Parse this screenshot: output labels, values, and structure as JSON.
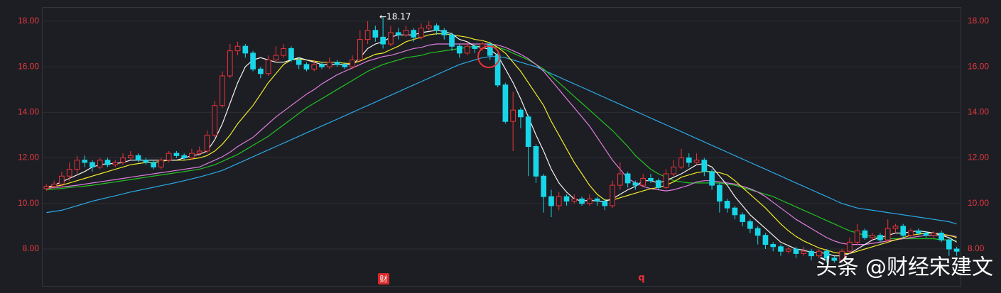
{
  "chart_data": {
    "type": "candlestick",
    "ylim": [
      6.38,
      18.62
    ],
    "yticks": [
      {
        "value": 8,
        "label": "8.00"
      },
      {
        "value": 10,
        "label": "10.00"
      },
      {
        "value": 12,
        "label": "12.00"
      },
      {
        "value": 14,
        "label": "14.00"
      },
      {
        "value": 16,
        "label": "16.00"
      },
      {
        "value": 18,
        "label": "18.00"
      }
    ],
    "grid": true,
    "up_color": "#e8333b",
    "down_color": "#18d6e8",
    "open": [
      10.65,
      10.75,
      10.85,
      11.2,
      11.5,
      11.9,
      11.8,
      11.6,
      11.9,
      11.7,
      11.8,
      12.0,
      12.1,
      11.9,
      11.8,
      11.6,
      11.9,
      12.2,
      12.1,
      12.0,
      12.2,
      12.3,
      13.0,
      14.3,
      15.6,
      16.7,
      16.9,
      16.6,
      15.9,
      15.7,
      16.3,
      16.5,
      16.8,
      16.3,
      16.1,
      15.9,
      16.1,
      16.0,
      16.2,
      16.1,
      16.0,
      16.3,
      17.2,
      17.6,
      17.3,
      17.0,
      17.5,
      17.4,
      17.6,
      17.3,
      17.7,
      17.8,
      17.6,
      17.4,
      16.9,
      16.6,
      16.9,
      16.8,
      17.0,
      16.5,
      15.2,
      13.6,
      14.1,
      13.8,
      12.5,
      11.2,
      10.3,
      9.9,
      10.3,
      10.1,
      10.2,
      10.0,
      10.2,
      10.1,
      9.9,
      10.8,
      11.3,
      10.9,
      10.8,
      11.1,
      11.0,
      10.7,
      11.3,
      11.6,
      12.0,
      11.8,
      11.9,
      11.4,
      10.8,
      10.1,
      9.8,
      9.5,
      9.2,
      8.9,
      8.6,
      8.2,
      8.1,
      7.9,
      8.0,
      7.8,
      7.9,
      7.7,
      7.9,
      7.6,
      7.5,
      7.9,
      8.3,
      8.8,
      8.5,
      8.6,
      8.4,
      8.9,
      9.0,
      8.6,
      8.8,
      8.7,
      8.6,
      8.7,
      8.4,
      8.0
    ],
    "high": [
      10.85,
      11.0,
      11.4,
      11.8,
      12.1,
      12.1,
      11.9,
      12.0,
      12.0,
      11.9,
      12.2,
      12.3,
      12.2,
      12.0,
      11.9,
      12.0,
      12.3,
      12.3,
      12.2,
      12.4,
      12.5,
      13.2,
      14.5,
      15.8,
      17.0,
      17.1,
      17.0,
      16.7,
      16.0,
      16.5,
      16.9,
      17.0,
      16.9,
      16.4,
      16.2,
      16.3,
      16.2,
      16.4,
      16.3,
      16.2,
      16.5,
      17.6,
      18.0,
      17.8,
      18.17,
      17.8,
      17.7,
      17.8,
      17.7,
      17.9,
      18.0,
      17.9,
      17.7,
      17.5,
      17.0,
      17.1,
      17.0,
      17.1,
      17.1,
      16.6,
      15.3,
      14.9,
      14.2,
      13.9,
      12.6,
      11.3,
      10.6,
      10.5,
      10.4,
      10.4,
      10.3,
      10.4,
      10.3,
      10.2,
      11.0,
      11.8,
      11.4,
      11.0,
      11.3,
      11.3,
      11.1,
      11.5,
      11.9,
      12.4,
      12.2,
      12.2,
      12.0,
      11.5,
      10.9,
      10.2,
      9.9,
      9.6,
      9.3,
      9.0,
      8.7,
      8.3,
      8.2,
      8.1,
      8.1,
      8.1,
      8.0,
      8.0,
      8.0,
      7.7,
      8.0,
      8.5,
      9.1,
      8.9,
      8.7,
      8.7,
      9.3,
      9.1,
      9.1,
      8.9,
      8.9,
      8.8,
      8.8,
      8.8,
      8.5,
      8.1
    ],
    "low": [
      10.55,
      10.65,
      10.7,
      11.0,
      11.3,
      11.6,
      11.4,
      11.5,
      11.6,
      11.6,
      11.7,
      11.9,
      11.8,
      11.7,
      11.5,
      11.5,
      11.8,
      12.0,
      11.9,
      11.9,
      12.1,
      12.2,
      12.9,
      14.2,
      15.5,
      16.5,
      16.4,
      15.8,
      15.5,
      15.6,
      16.2,
      16.4,
      16.2,
      15.9,
      15.8,
      15.8,
      15.9,
      15.9,
      16.0,
      15.9,
      15.9,
      16.2,
      17.0,
      17.1,
      16.8,
      16.9,
      17.2,
      17.3,
      17.1,
      17.2,
      17.6,
      17.4,
      17.2,
      16.7,
      16.4,
      16.5,
      16.6,
      16.7,
      16.3,
      15.1,
      13.5,
      12.3,
      13.3,
      11.2,
      10.9,
      9.6,
      9.4,
      9.7,
      9.9,
      10.0,
      9.9,
      9.9,
      9.9,
      9.7,
      9.8,
      10.6,
      10.7,
      10.6,
      10.7,
      10.9,
      10.6,
      10.6,
      11.2,
      11.5,
      11.6,
      11.7,
      11.2,
      10.6,
      9.6,
      9.6,
      9.3,
      9.0,
      8.7,
      8.2,
      8.0,
      7.9,
      7.7,
      7.8,
      7.6,
      7.7,
      7.5,
      7.6,
      7.4,
      7.4,
      7.4,
      7.8,
      8.2,
      8.4,
      8.4,
      8.3,
      8.3,
      8.7,
      8.5,
      8.5,
      8.6,
      8.5,
      8.5,
      8.3,
      7.7,
      7.7
    ],
    "close": [
      10.75,
      10.85,
      11.2,
      11.5,
      11.9,
      11.8,
      11.6,
      11.9,
      11.7,
      11.8,
      12.0,
      12.1,
      11.9,
      11.8,
      11.6,
      11.9,
      12.2,
      12.1,
      12.0,
      12.2,
      12.3,
      13.0,
      14.3,
      15.6,
      16.7,
      16.9,
      16.6,
      15.9,
      15.7,
      16.3,
      16.5,
      16.8,
      16.3,
      16.1,
      15.9,
      16.1,
      16.0,
      16.2,
      16.1,
      16.0,
      16.3,
      17.2,
      17.6,
      17.3,
      17.0,
      17.5,
      17.4,
      17.6,
      17.3,
      17.7,
      17.8,
      17.6,
      17.4,
      16.9,
      16.6,
      16.9,
      16.8,
      17.0,
      16.5,
      15.2,
      13.6,
      14.1,
      13.8,
      12.5,
      11.2,
      10.3,
      9.9,
      10.3,
      10.1,
      10.2,
      10.0,
      10.2,
      10.1,
      9.9,
      10.8,
      11.3,
      10.9,
      10.8,
      11.1,
      11.0,
      10.7,
      11.3,
      11.6,
      12.0,
      11.8,
      11.9,
      11.4,
      10.8,
      10.1,
      9.8,
      9.5,
      9.2,
      8.9,
      8.6,
      8.2,
      8.1,
      7.9,
      8.0,
      7.8,
      7.9,
      7.7,
      7.9,
      7.6,
      7.5,
      7.9,
      8.3,
      8.8,
      8.5,
      8.6,
      8.4,
      8.9,
      9.0,
      8.6,
      8.8,
      8.7,
      8.6,
      8.7,
      8.4,
      8.0,
      7.9
    ],
    "series": [
      {
        "color": "#2aa9e6",
        "values": [
          9.6,
          9.65,
          9.7,
          9.8,
          9.9,
          10.0,
          10.1,
          10.18,
          10.26,
          10.34,
          10.42,
          10.5,
          10.57,
          10.64,
          10.71,
          10.78,
          10.85,
          10.92,
          11.0,
          11.08,
          11.16,
          11.25,
          11.35,
          11.45,
          11.6,
          11.75,
          11.9,
          12.05,
          12.2,
          12.35,
          12.5,
          12.65,
          12.8,
          12.95,
          13.1,
          13.25,
          13.4,
          13.55,
          13.7,
          13.85,
          14.0,
          14.15,
          14.3,
          14.45,
          14.6,
          14.75,
          14.9,
          15.05,
          15.2,
          15.35,
          15.5,
          15.65,
          15.8,
          15.95,
          16.1,
          16.2,
          16.3,
          16.4,
          16.45,
          16.45,
          16.4,
          16.3,
          16.2,
          16.1,
          16.0,
          15.85,
          15.7,
          15.55,
          15.4,
          15.25,
          15.1,
          14.95,
          14.8,
          14.65,
          14.5,
          14.35,
          14.2,
          14.05,
          13.9,
          13.75,
          13.6,
          13.45,
          13.3,
          13.15,
          13.0,
          12.85,
          12.7,
          12.55,
          12.4,
          12.25,
          12.1,
          11.95,
          11.8,
          11.65,
          11.5,
          11.35,
          11.2,
          11.05,
          10.9,
          10.75,
          10.6,
          10.45,
          10.3,
          10.15,
          10.0,
          9.9,
          9.8,
          9.75,
          9.7,
          9.65,
          9.6,
          9.55,
          9.5,
          9.45,
          9.4,
          9.35,
          9.3,
          9.25,
          9.2,
          9.1
        ]
      },
      {
        "color": "#22c322",
        "values": [
          10.6,
          10.63,
          10.66,
          10.7,
          10.73,
          10.76,
          10.8,
          10.85,
          10.9,
          10.95,
          11.0,
          11.05,
          11.1,
          11.15,
          11.2,
          11.25,
          11.3,
          11.35,
          11.4,
          11.45,
          11.5,
          11.6,
          11.7,
          11.85,
          12.0,
          12.15,
          12.35,
          12.55,
          12.75,
          12.95,
          13.2,
          13.45,
          13.7,
          13.95,
          14.2,
          14.4,
          14.6,
          14.8,
          15.0,
          15.2,
          15.4,
          15.6,
          15.8,
          15.95,
          16.1,
          16.2,
          16.3,
          16.4,
          16.45,
          16.5,
          16.6,
          16.65,
          16.7,
          16.75,
          16.8,
          16.85,
          16.9,
          16.9,
          16.9,
          16.85,
          16.75,
          16.6,
          16.45,
          16.3,
          16.1,
          15.9,
          15.6,
          15.3,
          15.0,
          14.7,
          14.4,
          14.1,
          13.8,
          13.5,
          13.2,
          12.85,
          12.5,
          12.1,
          11.8,
          11.5,
          11.3,
          11.15,
          11.0,
          10.95,
          10.9,
          10.9,
          10.9,
          10.9,
          10.9,
          10.85,
          10.8,
          10.7,
          10.6,
          10.5,
          10.4,
          10.3,
          10.15,
          10.0,
          9.85,
          9.7,
          9.55,
          9.4,
          9.25,
          9.1,
          8.95,
          8.8,
          8.7,
          8.6,
          8.55,
          8.5,
          8.45,
          8.45,
          8.45,
          8.45,
          8.45,
          8.45,
          8.45,
          8.4,
          8.4,
          8.35
        ]
      },
      {
        "color": "#e07ee0",
        "values": [
          10.65,
          10.7,
          10.72,
          10.76,
          10.8,
          10.85,
          10.9,
          10.95,
          11.0,
          11.05,
          11.1,
          11.15,
          11.2,
          11.25,
          11.3,
          11.35,
          11.4,
          11.45,
          11.5,
          11.55,
          11.6,
          11.75,
          11.9,
          12.05,
          12.25,
          12.5,
          12.7,
          12.9,
          13.2,
          13.5,
          13.8,
          14.05,
          14.3,
          14.55,
          14.8,
          15.0,
          15.25,
          15.45,
          15.65,
          15.8,
          15.95,
          16.1,
          16.25,
          16.35,
          16.45,
          16.5,
          16.6,
          16.7,
          16.8,
          16.85,
          16.95,
          17.0,
          17.0,
          17.0,
          17.0,
          17.0,
          17.0,
          17.0,
          17.0,
          16.95,
          16.85,
          16.7,
          16.55,
          16.35,
          16.1,
          15.8,
          15.4,
          15.0,
          14.6,
          14.2,
          13.8,
          13.4,
          12.9,
          12.4,
          11.9,
          11.5,
          11.1,
          10.9,
          10.75,
          10.65,
          10.6,
          10.55,
          10.6,
          10.7,
          10.8,
          10.95,
          11.0,
          11.0,
          10.95,
          10.9,
          10.85,
          10.75,
          10.65,
          10.5,
          10.3,
          10.05,
          9.8,
          9.55,
          9.3,
          9.1,
          8.9,
          8.7,
          8.5,
          8.35,
          8.25,
          8.2,
          8.2,
          8.2,
          8.25,
          8.3,
          8.35,
          8.4,
          8.45,
          8.5,
          8.55,
          8.6,
          8.6,
          8.6,
          8.6,
          8.55
        ]
      },
      {
        "color": "#f2ea2a",
        "values": [
          10.7,
          10.75,
          10.8,
          10.9,
          11.0,
          11.1,
          11.2,
          11.3,
          11.4,
          11.5,
          11.6,
          11.7,
          11.75,
          11.8,
          11.8,
          11.85,
          11.9,
          11.9,
          11.9,
          11.95,
          12.0,
          12.1,
          12.3,
          12.6,
          13.0,
          13.5,
          13.9,
          14.3,
          14.8,
          15.3,
          15.7,
          16.1,
          16.3,
          16.35,
          16.3,
          16.25,
          16.2,
          16.2,
          16.2,
          16.15,
          16.15,
          16.25,
          16.4,
          16.55,
          16.6,
          16.75,
          16.9,
          17.1,
          17.2,
          17.3,
          17.4,
          17.45,
          17.45,
          17.4,
          17.35,
          17.3,
          17.2,
          17.15,
          17.05,
          16.85,
          16.6,
          16.2,
          15.8,
          15.3,
          14.8,
          14.3,
          13.6,
          13.0,
          12.4,
          11.8,
          11.3,
          10.8,
          10.4,
          10.15,
          10.15,
          10.25,
          10.35,
          10.45,
          10.55,
          10.65,
          10.7,
          10.8,
          10.95,
          11.15,
          11.25,
          11.35,
          11.4,
          11.4,
          11.35,
          11.25,
          11.0,
          10.7,
          10.4,
          10.1,
          9.8,
          9.45,
          9.1,
          8.8,
          8.55,
          8.35,
          8.2,
          8.05,
          7.95,
          7.85,
          7.8,
          7.8,
          7.9,
          8.0,
          8.1,
          8.2,
          8.3,
          8.4,
          8.5,
          8.6,
          8.65,
          8.7,
          8.7,
          8.65,
          8.6,
          8.5
        ]
      },
      {
        "color": "#f4f4f4",
        "values": [
          10.7,
          10.8,
          10.95,
          11.1,
          11.25,
          11.4,
          11.6,
          11.7,
          11.75,
          11.75,
          11.8,
          11.9,
          11.9,
          11.9,
          11.9,
          11.9,
          11.9,
          11.9,
          12.0,
          12.1,
          12.15,
          12.3,
          12.8,
          13.5,
          14.4,
          15.3,
          16.0,
          16.3,
          16.4,
          16.3,
          16.2,
          16.2,
          16.3,
          16.4,
          16.3,
          16.2,
          16.1,
          16.1,
          16.1,
          16.1,
          16.1,
          16.4,
          16.8,
          17.0,
          17.1,
          17.3,
          17.4,
          17.4,
          17.4,
          17.5,
          17.55,
          17.6,
          17.55,
          17.45,
          17.2,
          17.1,
          16.9,
          16.85,
          16.75,
          16.5,
          15.9,
          15.3,
          14.6,
          13.8,
          13.0,
          12.3,
          11.5,
          10.9,
          10.5,
          10.2,
          10.1,
          10.15,
          10.1,
          10.1,
          10.2,
          10.4,
          10.6,
          10.75,
          11.0,
          11.0,
          10.9,
          11.0,
          11.15,
          11.3,
          11.5,
          11.7,
          11.75,
          11.6,
          11.2,
          10.8,
          10.3,
          9.9,
          9.5,
          9.2,
          8.9,
          8.6,
          8.3,
          8.15,
          8.0,
          7.95,
          7.85,
          7.85,
          7.8,
          7.7,
          7.7,
          7.8,
          8.0,
          8.2,
          8.4,
          8.5,
          8.6,
          8.7,
          8.7,
          8.75,
          8.8,
          8.75,
          8.7,
          8.6,
          8.5,
          8.3
        ]
      }
    ],
    "annotations": {
      "max_label": "←18.17",
      "marker_1": "财",
      "marker_2": "q",
      "watermark": "头条 @财经宋建文"
    }
  }
}
